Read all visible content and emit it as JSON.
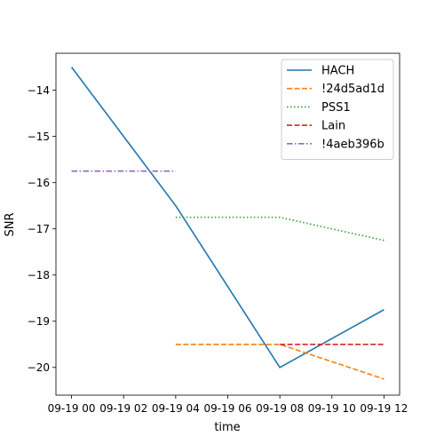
{
  "chart_data": {
    "type": "line",
    "xlabel": "time",
    "ylabel": "SNR",
    "x_tick_labels": [
      "09-19 00",
      "09-19 02",
      "09-19 04",
      "09-19 06",
      "09-19 08",
      "09-19 10",
      "09-19 12"
    ],
    "x_tick_hours": [
      0,
      2,
      4,
      6,
      8,
      10,
      12
    ],
    "xlim_hours": [
      -0.6,
      12.6
    ],
    "y_ticks": [
      -20,
      -19,
      -18,
      -17,
      -16,
      -15,
      -14
    ],
    "y_tick_labels": [
      "−20",
      "−19",
      "−18",
      "−17",
      "−16",
      "−15",
      "−14"
    ],
    "ylim": [
      -20.6,
      -13.2
    ],
    "grid": false,
    "legend_position": "top-right",
    "series": [
      {
        "name": "HACH",
        "color": "#1f77b4",
        "dash": "solid",
        "x_hours": [
          0,
          4,
          8,
          12
        ],
        "values": [
          -13.5,
          -16.5,
          -20.0,
          -18.75
        ]
      },
      {
        "name": "!24d5ad1d",
        "color": "#ff7f0e",
        "dash": "dashed",
        "x_hours": [
          4,
          8,
          12
        ],
        "values": [
          -19.5,
          -19.5,
          -20.25
        ]
      },
      {
        "name": "PSS1",
        "color": "#2ca02c",
        "dash": "dotted",
        "x_hours": [
          4,
          8,
          12
        ],
        "values": [
          -16.75,
          -16.75,
          -17.25
        ]
      },
      {
        "name": "Lain",
        "color": "#d62728",
        "dash": "dashed",
        "x_hours": [
          8,
          12
        ],
        "values": [
          -19.5,
          -19.5
        ]
      },
      {
        "name": "!4aeb396b",
        "color": "#9467bd",
        "dash": "dashdot",
        "x_hours": [
          0,
          4
        ],
        "values": [
          -15.75,
          -15.75
        ]
      }
    ]
  }
}
